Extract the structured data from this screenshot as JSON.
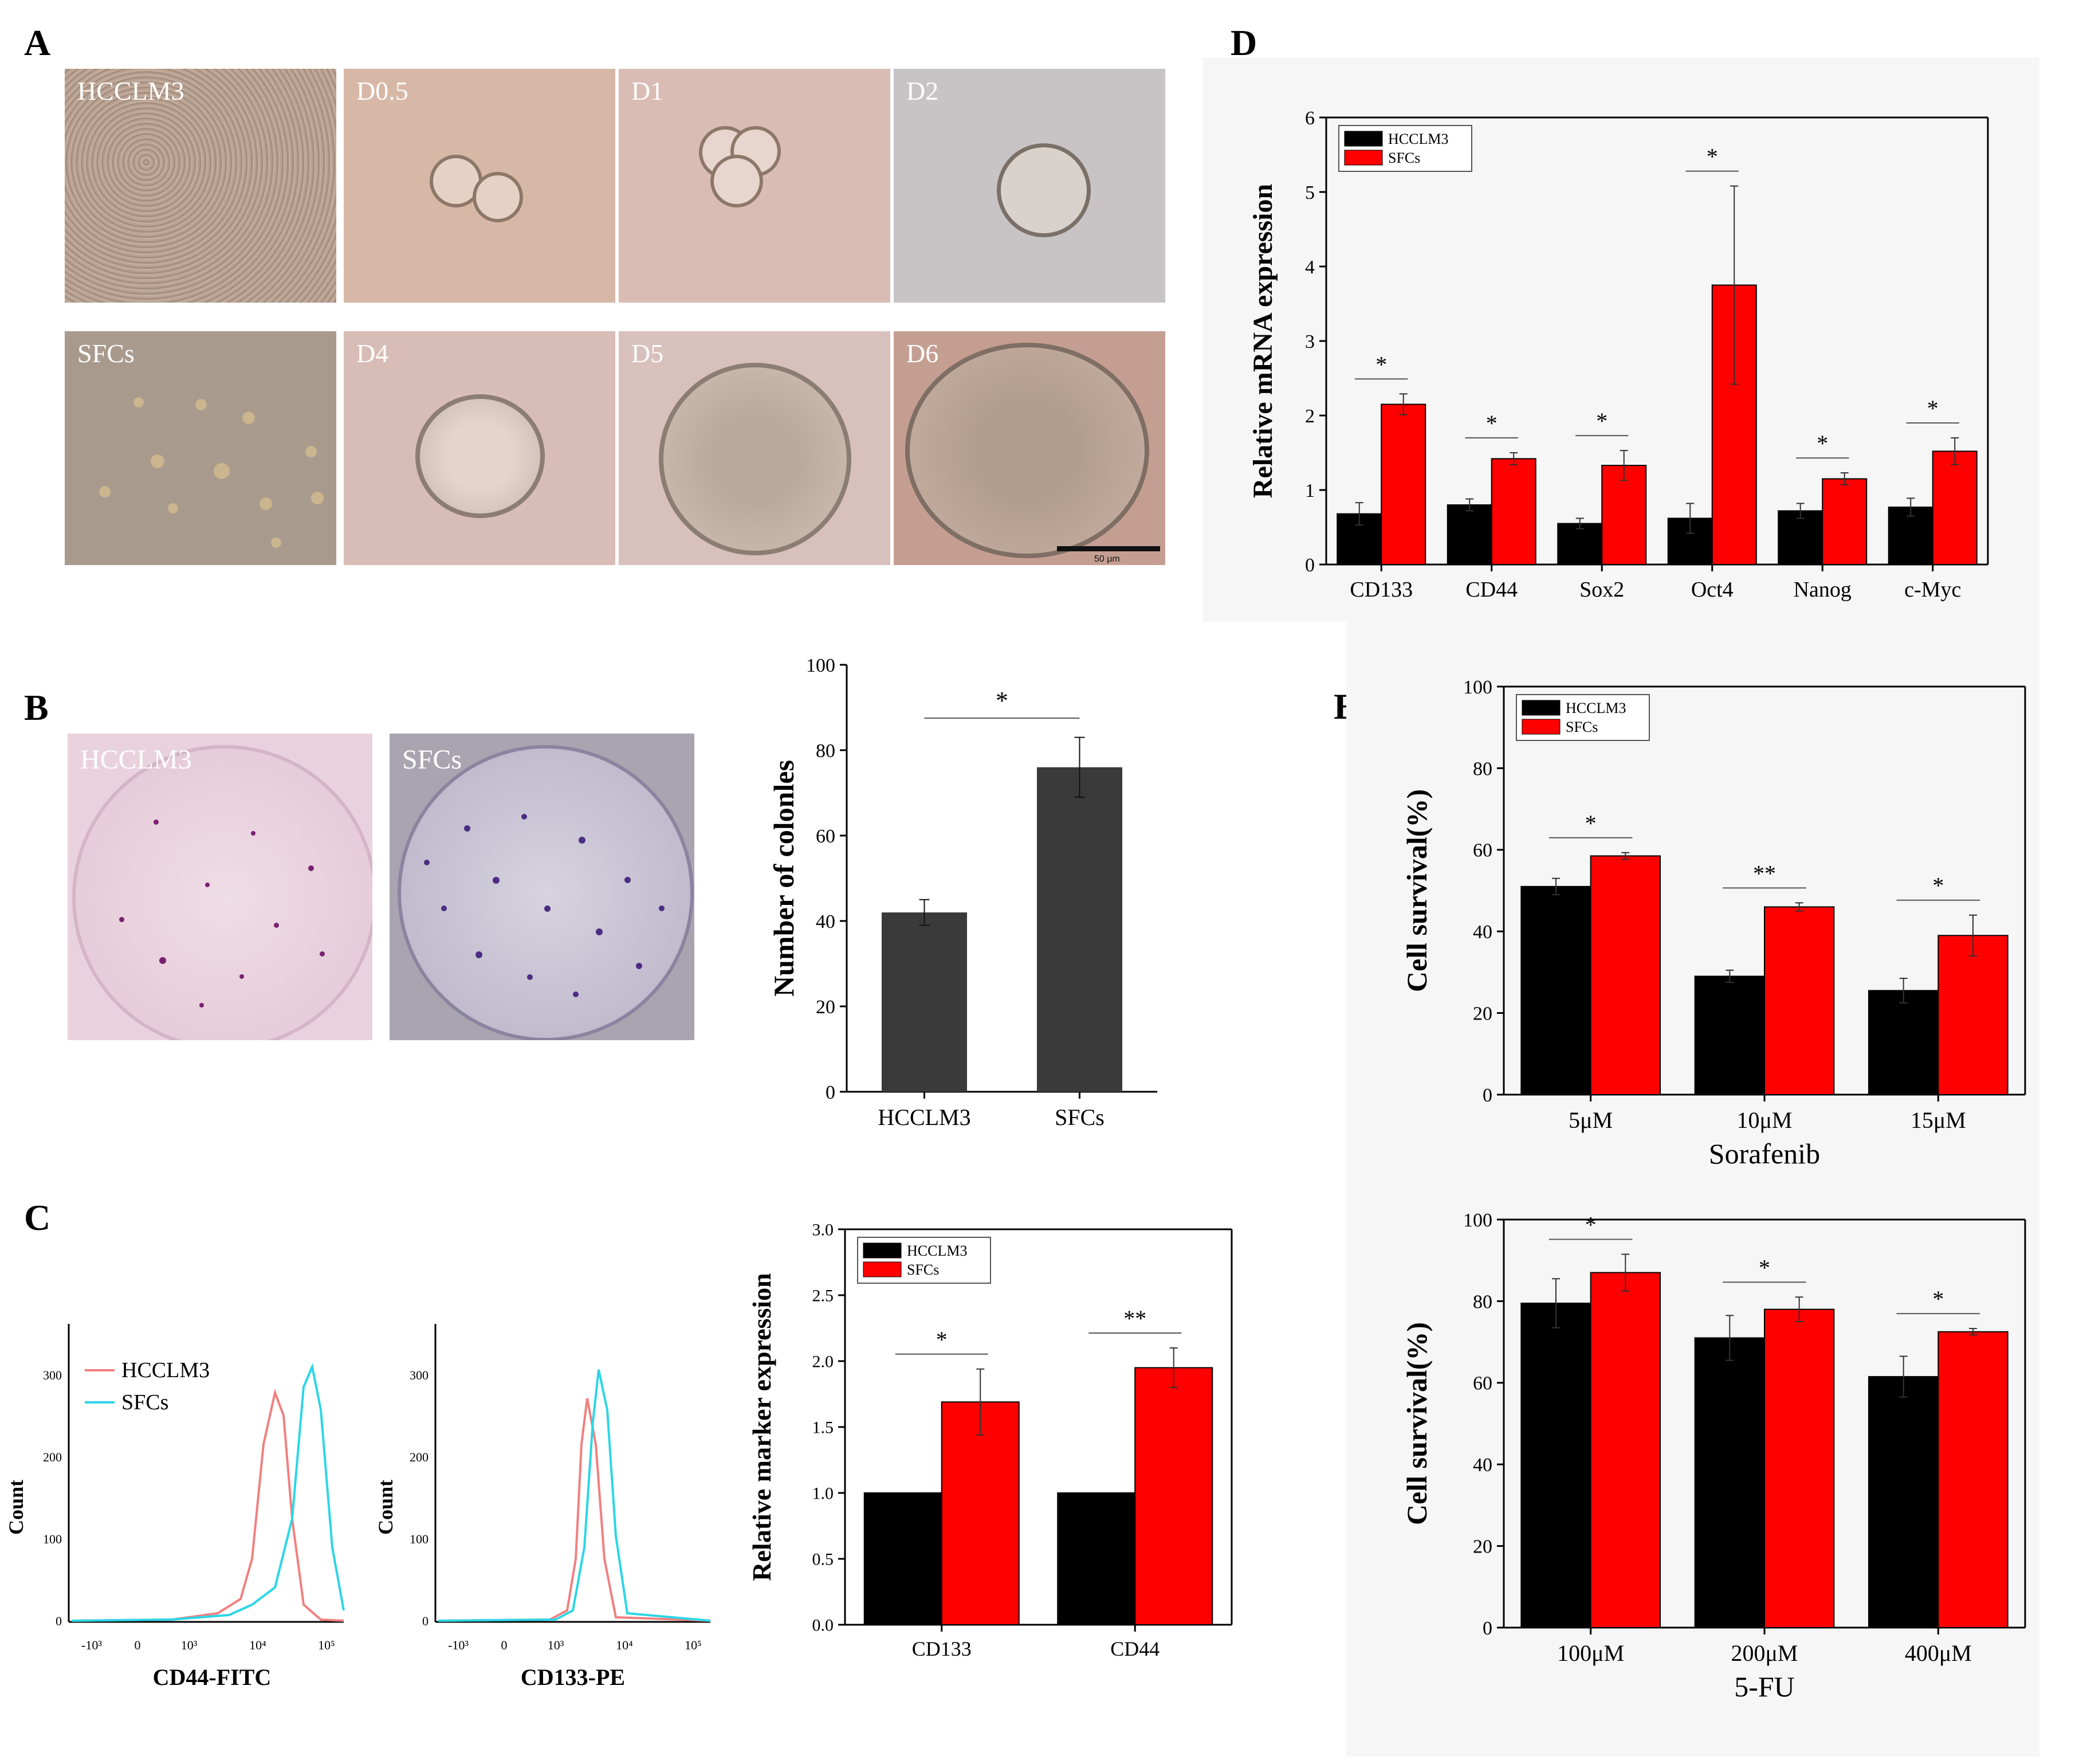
{
  "panel_letters": {
    "A": "A",
    "B": "B",
    "C": "C",
    "D": "D",
    "E": "E"
  },
  "panel_a": {
    "top_row": [
      "HCCLM3",
      "D0.5",
      "D1",
      "D2"
    ],
    "bottom_row": [
      "SFCs",
      "D4",
      "D5",
      "D6"
    ],
    "scale_bar_label": "50 μm"
  },
  "panel_b": {
    "dish_labels": [
      "HCCLM3",
      "SFCs"
    ]
  },
  "panel_c": {
    "flow_legend": [
      "HCCLM3",
      "SFCs"
    ],
    "flow_ylabel": "Count",
    "flow1_xlabel": "CD44-FITC",
    "flow2_xlabel": "CD133-PE",
    "flow_xticks": [
      "-10³",
      "0",
      "10³",
      "10⁴",
      "10⁵"
    ],
    "flow1_yticks": [
      "0",
      "100",
      "200",
      "300"
    ],
    "flow2_yticks": [
      "0",
      "100",
      "200",
      "300"
    ]
  },
  "colors": {
    "hcclm3": "#000000",
    "sfcs": "#ff0000",
    "colonies_bar": "#3a3a3a",
    "flow_hcclm3": "#f08080",
    "flow_sfcs": "#2bd6e6"
  },
  "chart_data": [
    {
      "id": "colonies",
      "type": "bar",
      "categories": [
        "HCCLM3",
        "SFCs"
      ],
      "values": [
        42,
        76
      ],
      "errors": [
        3,
        7
      ],
      "ylabel": "Number of colonles",
      "ylim": [
        0,
        100
      ],
      "yticks": [
        "0",
        "20",
        "40",
        "60",
        "80",
        "100"
      ],
      "significance": [
        {
          "from": 0,
          "to": 1,
          "label": "*"
        }
      ]
    },
    {
      "id": "marker_expression",
      "type": "bar",
      "categories": [
        "CD133",
        "CD44"
      ],
      "series": [
        {
          "name": "HCCLM3",
          "values": [
            1.0,
            1.0
          ],
          "errors": [
            0,
            0
          ]
        },
        {
          "name": "SFCs",
          "values": [
            1.69,
            1.95
          ],
          "errors": [
            0.25,
            0.15
          ]
        }
      ],
      "ylabel": "Relative marker expression",
      "ylim": [
        0,
        3.0
      ],
      "yticks": [
        "0.0",
        "0.5",
        "1.0",
        "1.5",
        "2.0",
        "2.5",
        "3.0"
      ],
      "legend": "top-left",
      "significance": [
        "*",
        "**"
      ]
    },
    {
      "id": "mrna_expression",
      "type": "bar",
      "categories": [
        "CD133",
        "CD44",
        "Sox2",
        "Oct4",
        "Nanog",
        "c-Myc"
      ],
      "series": [
        {
          "name": "HCCLM3",
          "values": [
            0.68,
            0.8,
            0.55,
            0.62,
            0.72,
            0.77
          ],
          "errors": [
            0.15,
            0.08,
            0.07,
            0.2,
            0.1,
            0.12
          ]
        },
        {
          "name": "SFCs",
          "values": [
            2.15,
            1.42,
            1.33,
            3.75,
            1.15,
            1.52
          ],
          "errors": [
            0.14,
            0.08,
            0.2,
            1.33,
            0.08,
            0.18
          ]
        }
      ],
      "ylabel": "Relative mRNA expression",
      "ylim": [
        0,
        6
      ],
      "yticks": [
        "0",
        "1",
        "2",
        "3",
        "4",
        "5",
        "6"
      ],
      "legend": "top-left",
      "significance": [
        "*",
        "*",
        "*",
        "*",
        "*",
        "*"
      ]
    },
    {
      "id": "sorafenib",
      "type": "bar",
      "categories": [
        "5μM",
        "10μM",
        "15μM"
      ],
      "series": [
        {
          "name": "HCCLM3",
          "values": [
            51,
            29,
            25.5
          ],
          "errors": [
            2,
            1.5,
            3
          ]
        },
        {
          "name": "SFCs",
          "values": [
            58.5,
            46,
            39
          ],
          "errors": [
            0.8,
            1,
            5
          ]
        }
      ],
      "ylabel": "Cell survival(%)",
      "xlabel": "Sorafenib",
      "ylim": [
        0,
        100
      ],
      "yticks": [
        "0",
        "20",
        "40",
        "60",
        "80",
        "100"
      ],
      "legend": "top-left",
      "significance": [
        "*",
        "**",
        "*"
      ]
    },
    {
      "id": "fu",
      "type": "bar",
      "categories": [
        "100μM",
        "200μM",
        "400μM"
      ],
      "series": [
        {
          "name": "HCCLM3",
          "values": [
            79.5,
            71,
            61.5
          ],
          "errors": [
            6,
            5.5,
            5
          ]
        },
        {
          "name": "SFCs",
          "values": [
            87,
            78,
            72.5
          ],
          "errors": [
            4.5,
            3,
            0.8
          ]
        }
      ],
      "ylabel": "Cell survival(%)",
      "xlabel": "5-FU",
      "ylim": [
        0,
        100
      ],
      "yticks": [
        "0",
        "20",
        "40",
        "60",
        "80",
        "100"
      ],
      "significance": [
        "*",
        "*",
        "*"
      ]
    }
  ]
}
